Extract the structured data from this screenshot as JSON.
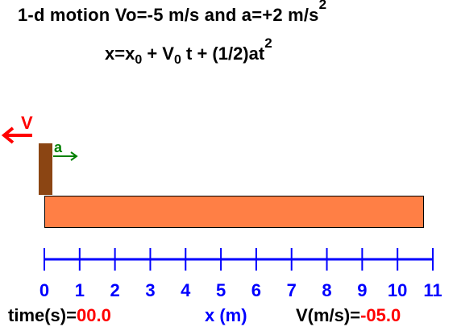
{
  "header": {
    "line1_text": "1-d motion  Vo=-5 m/s and a=+2 m/s",
    "line1_sup": "2",
    "line2_text_a": "x=x",
    "line2_sub": "0",
    "line2_text_b": " + V",
    "line2_sub2": "0",
    "line2_text_c": " t + (1/2)at",
    "line2_sup": "2"
  },
  "labels": {
    "velocity": "V",
    "acceleration": "a"
  },
  "axis": {
    "ticks": [
      "0",
      "1",
      "2",
      "3",
      "4",
      "5",
      "6",
      "7",
      "8",
      "9",
      "10",
      "11"
    ],
    "range": [
      0,
      11
    ]
  },
  "footer": {
    "time_label": "time(s)=",
    "time_value": "00.0",
    "x_label": "x (m)",
    "v_label": "V(m/s)=",
    "v_value": "-05.0"
  },
  "colors": {
    "block": "#8b4513",
    "track": "#ff7f45",
    "axis": "#0000ff",
    "velocity": "#ff0000",
    "acceleration": "#008000"
  }
}
